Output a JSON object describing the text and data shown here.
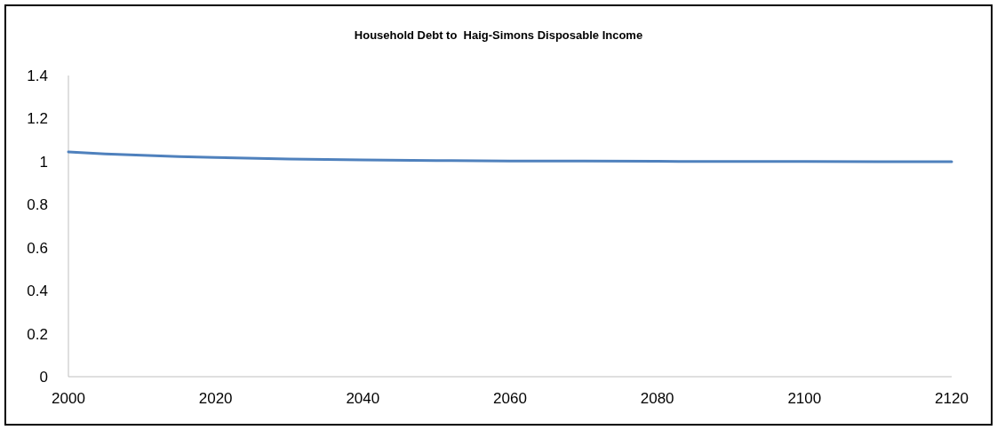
{
  "chart_data": {
    "type": "line",
    "title": "Household Debt to  Haig-Simons Disposable Income",
    "x": [
      2000,
      2005,
      2010,
      2015,
      2020,
      2030,
      2040,
      2050,
      2060,
      2070,
      2080,
      2090,
      2100,
      2110,
      2120
    ],
    "series": [
      {
        "color": "#4f81bd",
        "values": [
          1.045,
          1.036,
          1.029,
          1.023,
          1.019,
          1.012,
          1.008,
          1.005,
          1.003,
          1.002,
          1.001,
          1.0,
          1.0,
          0.999,
          0.999
        ]
      }
    ],
    "xlim": [
      2000,
      2120
    ],
    "xticks": [
      2000,
      2020,
      2040,
      2060,
      2080,
      2100,
      2120
    ],
    "ylim": [
      0,
      1.4
    ],
    "yticks": [
      0,
      0.2,
      0.4,
      0.6,
      0.8,
      1,
      1.2,
      1.4
    ],
    "grid": false,
    "marker": "none",
    "line_style": "solid"
  }
}
